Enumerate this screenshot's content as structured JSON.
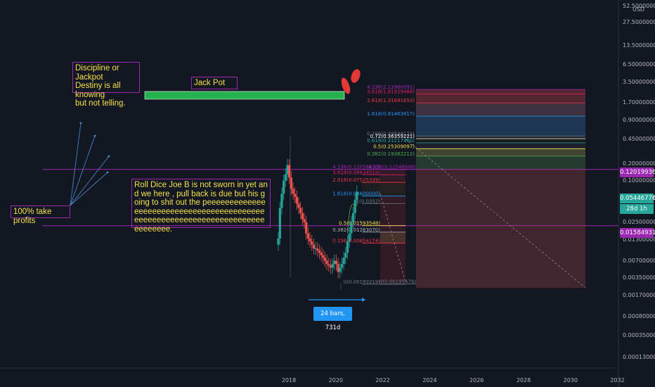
{
  "chart_data": {
    "type": "line",
    "scale": "log",
    "currency": "USD",
    "x_ticks": [
      "2018",
      "2020",
      "2022",
      "2024",
      "2026",
      "2028",
      "2030",
      "2032"
    ],
    "y_ticks": [
      "52.50000000",
      "27.50000000",
      "13.50000000",
      "6.50000000",
      "3.50000000",
      "1.70000000",
      "0.90000000",
      "0.45000000",
      "0.20000000",
      "0.10000000",
      "0.05000000",
      "0.02500000",
      "0.01300000",
      "0.00700000",
      "0.00350000",
      "0.00170000",
      "0.00080000",
      "0.00035000",
      "0.00013000"
    ],
    "price_tags": [
      {
        "value": "0.12019936",
        "color": "#9c27b0"
      },
      {
        "value": "0.05446776",
        "color": "#26a69a"
      },
      {
        "value": "28d 1h",
        "color": "#26a69a"
      },
      {
        "value": "0.01584931",
        "color": "#9c27b0"
      }
    ],
    "series": [
      {
        "x": [
          2017.55,
          2017.62,
          2017.7,
          2017.78,
          2017.86,
          2017.94,
          2018.02,
          2018.1,
          2018.18,
          2018.26,
          2018.34,
          2018.42,
          2018.5,
          2018.58,
          2018.66,
          2018.74,
          2018.82,
          2018.9,
          2018.98,
          2019.06,
          2019.14,
          2019.22,
          2019.3,
          2019.38,
          2019.46,
          2019.54,
          2019.62,
          2019.7,
          2019.78,
          2019.86,
          2019.94,
          2020.02,
          2020.1,
          2020.18,
          2020.26,
          2020.34,
          2020.42,
          2020.5,
          2020.58,
          2020.66,
          2020.74,
          2020.82,
          2020.9
        ],
        "open": [
          0.008,
          0.01,
          0.03,
          0.05,
          0.08,
          0.1,
          0.14,
          0.09,
          0.06,
          0.05,
          0.045,
          0.035,
          0.03,
          0.025,
          0.02,
          0.018,
          0.012,
          0.01,
          0.009,
          0.008,
          0.007,
          0.007,
          0.0065,
          0.006,
          0.0055,
          0.005,
          0.0045,
          0.004,
          0.0038,
          0.0035,
          0.004,
          0.0045,
          0.004,
          0.003,
          0.0035,
          0.004,
          0.005,
          0.006,
          0.009,
          0.012,
          0.018,
          0.025,
          0.04
        ],
        "close": [
          0.01,
          0.03,
          0.05,
          0.08,
          0.1,
          0.14,
          0.09,
          0.06,
          0.05,
          0.045,
          0.035,
          0.03,
          0.025,
          0.02,
          0.018,
          0.012,
          0.01,
          0.009,
          0.008,
          0.007,
          0.007,
          0.0065,
          0.006,
          0.0055,
          0.005,
          0.0045,
          0.004,
          0.0038,
          0.0035,
          0.004,
          0.0045,
          0.004,
          0.003,
          0.0035,
          0.004,
          0.005,
          0.006,
          0.009,
          0.012,
          0.018,
          0.025,
          0.04,
          0.054
        ]
      }
    ],
    "horizontal_lines": [
      0.12019936,
      0.01584931
    ],
    "fib_left": [
      {
        "label": "4.236(0.12056832)",
        "value": 0.1205,
        "color": "#9c27b0"
      },
      {
        "label": "3.618(0.09934519)",
        "value": 0.0993,
        "color": "#e91e63"
      },
      {
        "label": "2.618(0.07525339)",
        "value": 0.0753,
        "color": "#f23645"
      },
      {
        "label": "1.618(0.04600000)",
        "value": 0.046,
        "color": "#2196f3"
      },
      {
        "label": "1(0.0352)",
        "value": 0.0352,
        "color": "#787b86"
      },
      {
        "label": "0.5(0.01593548)",
        "value": 0.0159,
        "color": "#f5e04a"
      },
      {
        "label": "0.382(0.01263070)",
        "value": 0.0126,
        "color": "#b2b5be"
      },
      {
        "label": "0.236(0.00854174)",
        "value": 0.0085,
        "color": "#f23645"
      },
      {
        "label": "0(0.00193219)",
        "value": 0.00193,
        "color": "#787b86"
      }
    ],
    "fib_mid": [
      {
        "label": "4.236(0.12048948)",
        "value": 0.1205,
        "color": "#9c27b0"
      },
      {
        "label": "0(0.00195479)",
        "value": 0.00195,
        "color": "#787b86"
      }
    ],
    "fib_right": [
      {
        "label": "4.236(2.12960091)",
        "value": 2.129,
        "color": "#9c27b0"
      },
      {
        "label": "3.618(1.81919488)",
        "value": 1.819,
        "color": "#e91e63"
      },
      {
        "label": "2.618(1.31691653)",
        "value": 1.317,
        "color": "#f23645"
      },
      {
        "label": "1.618(0.81463817)",
        "value": 0.8146,
        "color": "#2196f3"
      },
      {
        "label": "0.786(0.39594123)",
        "value": 0.396,
        "color": "#787b86"
      },
      {
        "label": "0.72(0.36359221)",
        "value": 0.3636,
        "color": "#ffffff"
      },
      {
        "label": "0.618(0.31217460)",
        "value": 0.3122,
        "color": "#26a69a"
      },
      {
        "label": "0.5(0.25309097)",
        "value": 0.2531,
        "color": "#f5e04a"
      },
      {
        "label": "0.382(0.19382212)",
        "value": 0.1938,
        "color": "#4caf50"
      }
    ],
    "measure_label": "24 bars, 731d",
    "x_range": [
      2013.0,
      2032.0
    ],
    "y_range": [
      8e-05,
      60
    ]
  },
  "annotations": {
    "discipline": "Discipline or Jackpot\nDestiny is all knowing\nbut not telling.",
    "jackpot": "Jack Pot",
    "take_profits": "100% take profits",
    "roll_dice": "Roll Dice Joe B is not sworn in yet and we here , pull back is due but his going to shit out the peeeeeeeeeeeeeeeeeeeeeeeeeeeeeeeeeeeeeeeeeeeeeeeeeeeeeeeeeeeeeeeeeeeeeeeeeeeeeee."
  },
  "colors": {
    "background": "#131722",
    "up": "#26a69a",
    "down": "#ef5350",
    "purple": "#9c27b0",
    "jackpot_bar": "#22b14c",
    "note_text": "#f5e04a",
    "arrow": "#4a90d9",
    "measure": "#2196f3"
  }
}
